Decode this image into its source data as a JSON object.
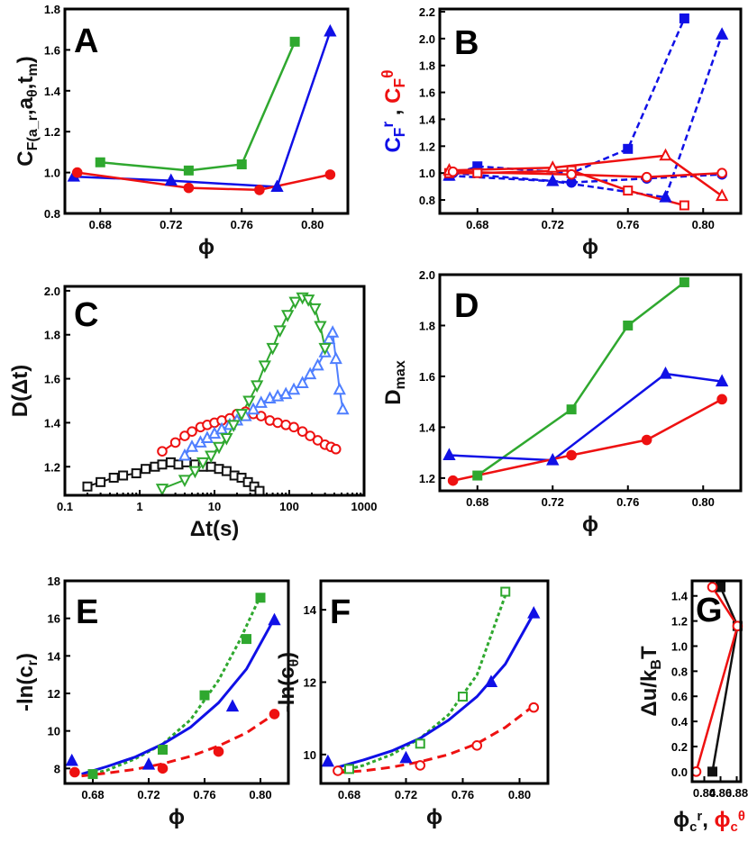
{
  "colors": {
    "green": "#2fa82f",
    "blue": "#1010e6",
    "red": "#ee1111",
    "black": "#111111",
    "lightblue": "#4f7fff"
  },
  "chart_data": [
    {
      "id": "A",
      "panel_label": "A",
      "type": "line",
      "xlabel": "ϕ",
      "ylabel": "C_F(a_r,a_θ,t_m)",
      "xlim": [
        0.66,
        0.82
      ],
      "ylim": [
        0.8,
        1.8
      ],
      "xticks": [
        0.68,
        0.72,
        0.76,
        0.8
      ],
      "xticklabels": [
        "0.68",
        "0.72",
        "0.76",
        "0.80"
      ],
      "yticks": [
        0.8,
        1.0,
        1.2,
        1.4,
        1.6,
        1.8
      ],
      "yticklabels": [
        "0.8",
        "1.0",
        "1.2",
        "1.4",
        "1.6",
        "1.8"
      ],
      "grid": false,
      "series": [
        {
          "name": "green",
          "marker": "square",
          "filled": true,
          "line": "solid",
          "color": "green",
          "x": [
            0.68,
            0.73,
            0.76,
            0.79
          ],
          "y": [
            1.05,
            1.01,
            1.04,
            1.64
          ]
        },
        {
          "name": "blue",
          "marker": "triangle-up",
          "filled": true,
          "line": "solid",
          "color": "blue",
          "x": [
            0.665,
            0.72,
            0.78,
            0.81
          ],
          "y": [
            0.98,
            0.96,
            0.93,
            1.69
          ]
        },
        {
          "name": "red",
          "marker": "circle",
          "filled": true,
          "line": "solid",
          "color": "red",
          "x": [
            0.667,
            0.73,
            0.77,
            0.81
          ],
          "y": [
            1.0,
            0.925,
            0.915,
            0.99
          ]
        }
      ]
    },
    {
      "id": "B",
      "panel_label": "B",
      "type": "line",
      "xlabel": "ϕ",
      "ylabel_parts": [
        [
          "C",
          "blue"
        ],
        [
          "F",
          "blue",
          "sub"
        ],
        [
          "r",
          "blue",
          "sup"
        ],
        [
          " , ",
          "black"
        ],
        [
          "C",
          "red"
        ],
        [
          "F",
          "red",
          "sub"
        ],
        [
          "θ",
          "red",
          "sup"
        ]
      ],
      "xlim": [
        0.66,
        0.82
      ],
      "ylim": [
        0.7,
        2.22
      ],
      "xticks": [
        0.68,
        0.72,
        0.76,
        0.8
      ],
      "xticklabels": [
        "0.68",
        "0.72",
        "0.76",
        "0.80"
      ],
      "yticks": [
        0.8,
        1.0,
        1.2,
        1.4,
        1.6,
        1.8,
        2.0,
        2.2
      ],
      "yticklabels": [
        "0.8",
        "1.0",
        "1.2",
        "1.4",
        "1.6",
        "1.8",
        "2.0",
        "2.2"
      ],
      "grid": false,
      "series": [
        {
          "name": "Cr squares",
          "marker": "square",
          "filled": true,
          "line": "dash",
          "color": "blue",
          "x": [
            0.665,
            0.68,
            0.73,
            0.76,
            0.79
          ],
          "y": [
            0.98,
            1.05,
            1.0,
            1.18,
            2.15
          ]
        },
        {
          "name": "Cr triangles",
          "marker": "triangle-up",
          "filled": true,
          "line": "dash",
          "color": "blue",
          "x": [
            0.665,
            0.72,
            0.78,
            0.81
          ],
          "y": [
            0.98,
            0.94,
            0.82,
            2.03
          ]
        },
        {
          "name": "Cr circles",
          "marker": "circle",
          "filled": true,
          "line": "dash",
          "color": "blue",
          "x": [
            0.667,
            0.73,
            0.77,
            0.81
          ],
          "y": [
            1.0,
            0.93,
            0.96,
            0.99
          ]
        },
        {
          "name": "Ctheta squares",
          "marker": "square",
          "filled": false,
          "line": "solid",
          "color": "red",
          "x": [
            0.665,
            0.68,
            0.73,
            0.76,
            0.79
          ],
          "y": [
            1.0,
            1.0,
            1.02,
            0.87,
            0.76
          ]
        },
        {
          "name": "Ctheta triangles",
          "marker": "triangle-up",
          "filled": false,
          "line": "solid",
          "color": "red",
          "x": [
            0.665,
            0.72,
            0.78,
            0.81
          ],
          "y": [
            1.02,
            1.04,
            1.13,
            0.83
          ]
        },
        {
          "name": "Ctheta circles",
          "marker": "circle",
          "filled": false,
          "line": "solid",
          "color": "red",
          "x": [
            0.667,
            0.73,
            0.77,
            0.81
          ],
          "y": [
            1.01,
            0.99,
            0.97,
            1.0
          ]
        }
      ]
    },
    {
      "id": "C",
      "panel_label": "C",
      "type": "scatter",
      "xscale": "log",
      "xlabel": "Δt(s)",
      "ylabel": "D(Δt)",
      "xlim": [
        0.1,
        1000
      ],
      "ylim": [
        1.07,
        2.02
      ],
      "xticks": [
        0.1,
        1,
        10,
        100,
        1000
      ],
      "xticklabels": [
        "0.1",
        "1",
        "10",
        "100",
        "1000"
      ],
      "yticks": [
        1.2,
        1.4,
        1.6,
        1.8,
        2.0
      ],
      "yticklabels": [
        "1.2",
        "1.4",
        "1.6",
        "1.8",
        "2.0"
      ],
      "grid": false,
      "series": [
        {
          "name": "black",
          "marker": "square",
          "filled": false,
          "line": "solid",
          "color": "black",
          "x": [
            0.2,
            0.3,
            0.45,
            0.6,
            0.9,
            1.2,
            1.6,
            2.0,
            2.6,
            3.3,
            4.2,
            5.5,
            7,
            9,
            11.5,
            14.5,
            18.5,
            23,
            28,
            34,
            40
          ],
          "y": [
            1.11,
            1.13,
            1.15,
            1.16,
            1.17,
            1.19,
            1.2,
            1.21,
            1.22,
            1.21,
            1.22,
            1.21,
            1.2,
            1.2,
            1.19,
            1.18,
            1.16,
            1.15,
            1.13,
            1.11,
            1.09
          ]
        },
        {
          "name": "red",
          "marker": "circle",
          "filled": false,
          "line": "solid",
          "color": "red",
          "x": [
            2,
            3,
            4,
            5,
            6.5,
            8,
            10,
            12.5,
            16,
            20,
            26,
            33,
            42,
            55,
            70,
            90,
            115,
            150,
            190,
            240,
            300,
            360,
            420
          ],
          "y": [
            1.27,
            1.31,
            1.34,
            1.36,
            1.38,
            1.39,
            1.4,
            1.41,
            1.42,
            1.44,
            1.45,
            1.44,
            1.43,
            1.41,
            1.4,
            1.39,
            1.38,
            1.36,
            1.34,
            1.32,
            1.3,
            1.29,
            1.28
          ]
        },
        {
          "name": "blue",
          "marker": "triangle-up",
          "filled": false,
          "line": "solid",
          "color": "lightblue",
          "x": [
            4,
            5,
            6.5,
            8,
            10,
            12.5,
            16,
            20,
            26,
            33,
            42,
            55,
            70,
            90,
            115,
            150,
            190,
            240,
            300,
            340,
            380,
            420,
            470,
            520
          ],
          "y": [
            1.25,
            1.29,
            1.31,
            1.33,
            1.35,
            1.37,
            1.39,
            1.41,
            1.43,
            1.46,
            1.49,
            1.51,
            1.52,
            1.53,
            1.55,
            1.58,
            1.62,
            1.66,
            1.72,
            1.78,
            1.81,
            1.69,
            1.55,
            1.46
          ]
        },
        {
          "name": "green",
          "marker": "triangle-down",
          "filled": false,
          "line": "solid",
          "color": "green",
          "x": [
            2,
            4,
            5.5,
            7,
            9,
            11.5,
            14.5,
            18,
            23,
            29,
            37,
            47,
            60,
            75,
            95,
            120,
            150,
            180,
            220,
            260,
            300
          ],
          "y": [
            1.1,
            1.14,
            1.18,
            1.22,
            1.25,
            1.29,
            1.33,
            1.39,
            1.44,
            1.5,
            1.57,
            1.66,
            1.74,
            1.82,
            1.89,
            1.95,
            1.97,
            1.96,
            1.92,
            1.84,
            1.74
          ]
        }
      ]
    },
    {
      "id": "D",
      "panel_label": "D",
      "type": "line",
      "xlabel": "ϕ",
      "ylabel": "D_max",
      "xlim": [
        0.66,
        0.82
      ],
      "ylim": [
        1.15,
        2.0
      ],
      "xticks": [
        0.68,
        0.72,
        0.76,
        0.8
      ],
      "xticklabels": [
        "0.68",
        "0.72",
        "0.76",
        "0.80"
      ],
      "yticks": [
        1.2,
        1.4,
        1.6,
        1.8,
        2.0
      ],
      "yticklabels": [
        "1.2",
        "1.4",
        "1.6",
        "1.8",
        "2.0"
      ],
      "grid": false,
      "series": [
        {
          "name": "green",
          "marker": "square",
          "filled": true,
          "line": "solid",
          "color": "green",
          "x": [
            0.68,
            0.73,
            0.76,
            0.79
          ],
          "y": [
            1.21,
            1.47,
            1.8,
            1.97
          ]
        },
        {
          "name": "blue",
          "marker": "triangle-up",
          "filled": true,
          "line": "solid",
          "color": "blue",
          "x": [
            0.665,
            0.72,
            0.78,
            0.81
          ],
          "y": [
            1.29,
            1.27,
            1.61,
            1.58
          ]
        },
        {
          "name": "red",
          "marker": "circle",
          "filled": true,
          "line": "solid",
          "color": "red",
          "x": [
            0.667,
            0.73,
            0.77,
            0.81
          ],
          "y": [
            1.19,
            1.29,
            1.35,
            1.51
          ]
        }
      ]
    },
    {
      "id": "E",
      "panel_label": "E",
      "type": "scatter",
      "xlabel": "ϕ",
      "ylabel": "-ln(c_r)",
      "xlim": [
        0.66,
        0.82
      ],
      "ylim": [
        7.2,
        18
      ],
      "xticks": [
        0.68,
        0.72,
        0.76,
        0.8
      ],
      "xticklabels": [
        "0.68",
        "0.72",
        "0.76",
        "0.80"
      ],
      "yticks": [
        8,
        10,
        12,
        14,
        16,
        18
      ],
      "yticklabels": [
        "8",
        "10",
        "12",
        "14",
        "16",
        "18"
      ],
      "grid": false,
      "series": [
        {
          "name": "green",
          "marker": "square",
          "filled": true,
          "color": "green",
          "x": [
            0.68,
            0.73,
            0.76,
            0.79,
            0.8
          ],
          "y": [
            7.7,
            9.0,
            11.9,
            14.9,
            17.1
          ]
        },
        {
          "name": "blue",
          "marker": "triangle-up",
          "filled": true,
          "color": "blue",
          "x": [
            0.665,
            0.72,
            0.78,
            0.81
          ],
          "y": [
            8.4,
            8.2,
            11.3,
            15.9
          ]
        },
        {
          "name": "red",
          "marker": "circle",
          "filled": true,
          "color": "red",
          "x": [
            0.667,
            0.73,
            0.77,
            0.81
          ],
          "y": [
            7.8,
            8.0,
            8.9,
            10.9
          ]
        }
      ],
      "fits": [
        {
          "color": "green",
          "dash": "short",
          "x": [
            0.672,
            0.69,
            0.71,
            0.73,
            0.75,
            0.77,
            0.785,
            0.8
          ],
          "y": [
            7.6,
            7.9,
            8.5,
            9.3,
            10.6,
            12.7,
            14.8,
            17.2
          ]
        },
        {
          "color": "blue",
          "dash": "solid",
          "x": [
            0.672,
            0.69,
            0.71,
            0.73,
            0.75,
            0.77,
            0.79,
            0.81
          ],
          "y": [
            7.7,
            8.1,
            8.6,
            9.3,
            10.2,
            11.5,
            13.3,
            16.0
          ]
        },
        {
          "color": "red",
          "dash": "long",
          "x": [
            0.672,
            0.69,
            0.71,
            0.73,
            0.75,
            0.77,
            0.79,
            0.81
          ],
          "y": [
            7.6,
            7.75,
            7.95,
            8.25,
            8.65,
            9.2,
            9.9,
            10.9
          ]
        }
      ]
    },
    {
      "id": "F",
      "panel_label": "F",
      "type": "scatter",
      "xlabel": "ϕ",
      "ylabel": "-ln(c_θ)",
      "xlim": [
        0.66,
        0.82
      ],
      "ylim": [
        9.2,
        14.8
      ],
      "xticks": [
        0.68,
        0.72,
        0.76,
        0.8
      ],
      "xticklabels": [
        "0.68",
        "0.72",
        "0.76",
        "0.80"
      ],
      "yticks": [
        10,
        12,
        14
      ],
      "yticklabels": [
        "10",
        "12",
        "14"
      ],
      "grid": false,
      "series": [
        {
          "name": "green",
          "marker": "square",
          "filled": false,
          "color": "green",
          "x": [
            0.68,
            0.73,
            0.76,
            0.79
          ],
          "y": [
            9.6,
            10.3,
            11.6,
            14.5
          ]
        },
        {
          "name": "blue",
          "marker": "triangle-up",
          "filled": true,
          "color": "blue",
          "x": [
            0.665,
            0.72,
            0.78,
            0.81
          ],
          "y": [
            9.8,
            9.9,
            12.0,
            13.9
          ]
        },
        {
          "name": "red",
          "marker": "circle",
          "filled": false,
          "color": "red",
          "x": [
            0.672,
            0.73,
            0.77,
            0.81
          ],
          "y": [
            9.55,
            9.7,
            10.25,
            11.3
          ]
        }
      ],
      "fits": [
        {
          "color": "green",
          "dash": "short",
          "x": [
            0.675,
            0.69,
            0.71,
            0.73,
            0.75,
            0.77,
            0.79
          ],
          "y": [
            9.55,
            9.7,
            10.0,
            10.45,
            11.1,
            12.2,
            14.4
          ]
        },
        {
          "color": "blue",
          "dash": "solid",
          "x": [
            0.672,
            0.69,
            0.71,
            0.73,
            0.75,
            0.77,
            0.79,
            0.81
          ],
          "y": [
            9.65,
            9.85,
            10.1,
            10.45,
            10.95,
            11.6,
            12.5,
            13.9
          ]
        },
        {
          "color": "red",
          "dash": "long",
          "x": [
            0.672,
            0.69,
            0.71,
            0.73,
            0.75,
            0.77,
            0.79,
            0.81
          ],
          "y": [
            9.5,
            9.55,
            9.65,
            9.8,
            10.0,
            10.3,
            10.75,
            11.35
          ]
        }
      ]
    },
    {
      "id": "G",
      "panel_label": "G",
      "type": "line",
      "xlabel_parts": [
        [
          "ϕ",
          "black"
        ],
        [
          "c",
          "black",
          "sub"
        ],
        [
          "r",
          "black",
          "sup"
        ],
        [
          ", ",
          "black"
        ],
        [
          "ϕ",
          "red"
        ],
        [
          "c",
          "red",
          "sub"
        ],
        [
          "θ",
          "red",
          "sup"
        ]
      ],
      "ylabel": "Δu/k_BT",
      "xlim": [
        0.825,
        0.885
      ],
      "ylim": [
        -0.08,
        1.52
      ],
      "xticks": [
        0.84,
        0.86,
        0.88
      ],
      "xticklabels": [
        "0.84",
        "0.86",
        "0.88"
      ],
      "yticks": [
        0.0,
        0.2,
        0.4,
        0.6,
        0.8,
        1.0,
        1.2,
        1.4
      ],
      "yticklabels": [
        "0.0",
        "0.2",
        "0.4",
        "0.6",
        "0.8",
        "1.0",
        "1.2",
        "1.4"
      ],
      "grid": false,
      "series": [
        {
          "name": "phi_c^r",
          "marker": "square",
          "filled": true,
          "line": "solid",
          "color": "black",
          "x": [
            0.85,
            0.881,
            0.86
          ],
          "y": [
            0.0,
            1.16,
            1.47
          ]
        },
        {
          "name": "phi_c^theta",
          "marker": "circle",
          "filled": false,
          "line": "solid",
          "color": "red",
          "x": [
            0.83,
            0.881,
            0.85
          ],
          "y": [
            0.0,
            1.16,
            1.47
          ]
        }
      ]
    }
  ]
}
